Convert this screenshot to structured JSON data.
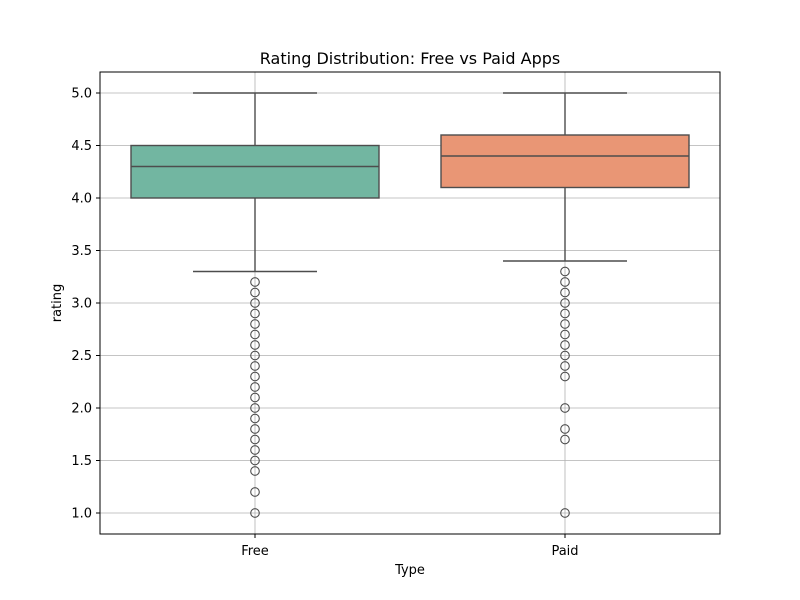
{
  "chart_data": {
    "type": "box",
    "title": "Rating Distribution: Free vs Paid Apps",
    "xlabel": "Type",
    "ylabel": "rating",
    "ylim": [
      0.8,
      5.2
    ],
    "yticks": [
      1.0,
      1.5,
      2.0,
      2.5,
      3.0,
      3.5,
      4.0,
      4.5,
      5.0
    ],
    "grid": true,
    "categories": [
      "Free",
      "Paid"
    ],
    "series": [
      {
        "category": "Free",
        "color": "#72b6a1",
        "whisker_low": 3.3,
        "q1": 4.0,
        "median": 4.3,
        "q3": 4.5,
        "whisker_high": 5.0,
        "outliers": [
          3.2,
          3.1,
          3.0,
          2.9,
          2.8,
          2.7,
          2.6,
          2.5,
          2.4,
          2.3,
          2.2,
          2.1,
          2.0,
          1.9,
          1.8,
          1.7,
          1.6,
          1.5,
          1.4,
          1.2,
          1.0
        ]
      },
      {
        "category": "Paid",
        "color": "#e99675",
        "whisker_low": 3.4,
        "q1": 4.1,
        "median": 4.4,
        "q3": 4.6,
        "whisker_high": 5.0,
        "outliers": [
          3.3,
          3.2,
          3.1,
          3.0,
          2.9,
          2.8,
          2.7,
          2.6,
          2.5,
          2.4,
          2.3,
          2.0,
          1.8,
          1.7,
          1.0
        ]
      }
    ]
  }
}
